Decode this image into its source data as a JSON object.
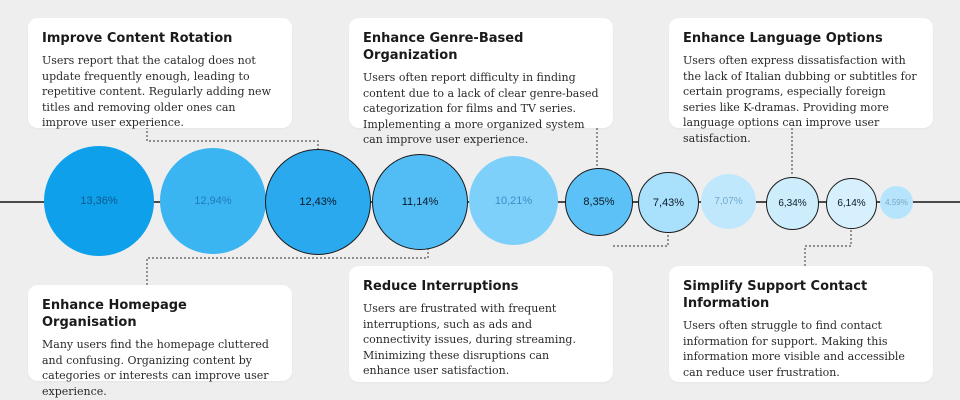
{
  "bubbles": [
    {
      "label": "13,36%",
      "value": 13.36,
      "fill": "#0ea0ea",
      "text_color": "#0a5a8a",
      "border": "none"
    },
    {
      "label": "12,94%",
      "value": 12.94,
      "fill": "#3bb4f2",
      "text_color": "#1e7cb8",
      "border": "none"
    },
    {
      "label": "12,43%",
      "value": 12.43,
      "fill": "#2aa9ee",
      "text_color": "#0b1a2a",
      "border": "#1a1a1a"
    },
    {
      "label": "11,14%",
      "value": 11.14,
      "fill": "#52bdf5",
      "text_color": "#0b1a2a",
      "border": "#1a1a1a"
    },
    {
      "label": "10,21%",
      "value": 10.21,
      "fill": "#7dd0fa",
      "text_color": "#3a8fc6",
      "border": "none"
    },
    {
      "label": "8,35%",
      "value": 8.35,
      "fill": "#5cc1f6",
      "text_color": "#0b1a2a",
      "border": "#1a1a1a"
    },
    {
      "label": "7,43%",
      "value": 7.43,
      "fill": "#a9e0fc",
      "text_color": "#0b1a2a",
      "border": "#1a1a1a"
    },
    {
      "label": "7,07%",
      "value": 7.07,
      "fill": "#c0e8fd",
      "text_color": "#6fa8cc",
      "border": "none"
    },
    {
      "label": "6,34%",
      "value": 6.34,
      "fill": "#cdedfd",
      "text_color": "#0b1a2a",
      "border": "#1a1a1a"
    },
    {
      "label": "6,14%",
      "value": 6.14,
      "fill": "#d6f0fd",
      "text_color": "#0b1a2a",
      "border": "#1a1a1a"
    },
    {
      "label": "4,59%",
      "value": 4.59,
      "fill": "#b6e4fc",
      "text_color": "#7aa8c6",
      "border": "none"
    }
  ],
  "cards": [
    {
      "title": "Improve Content Rotation",
      "body": "Users report that the catalog does not update frequently enough, leading to repetitive content. Regularly adding new titles and removing older ones can improve user experience.",
      "bubble_index": 2
    },
    {
      "title": "Enhance Genre-Based Organization",
      "body": "Users often report difficulty in finding content due to a lack of clear genre-based categorization for films and TV series. Implementing a more organized system can improve user experience.",
      "bubble_index": 5
    },
    {
      "title": "Enhance Language Options",
      "body": "Users often express dissatisfaction with the lack of Italian dubbing or subtitles for certain programs, especially foreign series like K-dramas. Providing more language options can improve user satisfaction.",
      "bubble_index": 8
    },
    {
      "title": "Enhance Homepage Organisation",
      "body": "Many users find the homepage cluttered and confusing. Organizing content by categories or interests can improve user experience.",
      "bubble_index": 3
    },
    {
      "title": "Reduce Interruptions",
      "body": "Users are frustrated with frequent interruptions, such as ads and connectivity issues, during streaming. Minimizing these disruptions can enhance user satisfaction.",
      "bubble_index": 6
    },
    {
      "title": "Simplify Support Contact Information",
      "body": "Users often struggle to find contact information for support. Making this information more visible and accessible can reduce user frustration.",
      "bubble_index": 9
    }
  ]
}
